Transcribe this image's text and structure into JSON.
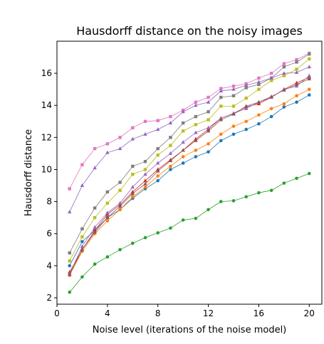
{
  "chart_data": {
    "type": "line",
    "title": "Hausdorff distance on the noisy images",
    "xlabel": "Noise level (iterations of the noise model)",
    "ylabel": "Hausdorff distance",
    "xlim": [
      0,
      21
    ],
    "ylim": [
      1.6,
      18.0
    ],
    "xticks": [
      0,
      4,
      8,
      12,
      16,
      20
    ],
    "yticks": [
      2,
      4,
      6,
      8,
      10,
      12,
      14,
      16
    ],
    "grid": false,
    "legend": "none",
    "x": [
      1,
      2,
      3,
      4,
      5,
      6,
      7,
      8,
      9,
      10,
      11,
      12,
      13,
      14,
      15,
      16,
      17,
      18,
      19,
      20
    ],
    "series": [
      {
        "color": "#1f77b4",
        "marker": "circle",
        "values": [
          4.0,
          5.5,
          6.2,
          7.0,
          7.5,
          8.2,
          8.8,
          9.3,
          10.0,
          10.4,
          10.8,
          11.1,
          11.8,
          12.2,
          12.5,
          12.85,
          13.3,
          13.9,
          14.2,
          14.65
        ]
      },
      {
        "color": "#ff7f0e",
        "marker": "circle",
        "values": [
          3.4,
          4.9,
          6.0,
          6.8,
          7.5,
          8.3,
          8.9,
          9.6,
          10.2,
          10.8,
          11.2,
          11.6,
          12.2,
          12.7,
          13.0,
          13.4,
          13.8,
          14.1,
          14.6,
          15.0
        ]
      },
      {
        "color": "#2ca02c",
        "marker": "circle",
        "values": [
          2.35,
          3.3,
          4.1,
          4.55,
          5.0,
          5.4,
          5.75,
          6.05,
          6.35,
          6.85,
          6.95,
          7.5,
          8.0,
          8.05,
          8.3,
          8.55,
          8.7,
          9.15,
          9.45,
          9.75
        ]
      },
      {
        "color": "#d62728",
        "marker": "triangle",
        "values": [
          3.6,
          5.0,
          6.2,
          7.2,
          7.8,
          8.6,
          9.3,
          10.0,
          10.6,
          11.2,
          11.9,
          12.5,
          13.2,
          13.5,
          13.9,
          14.1,
          14.5,
          15.0,
          15.4,
          15.75
        ]
      },
      {
        "color": "#9467bd",
        "marker": "triangle",
        "values": [
          3.5,
          5.2,
          6.4,
          7.3,
          7.9,
          8.9,
          9.7,
          10.4,
          11.0,
          11.7,
          12.3,
          12.6,
          13.2,
          13.5,
          13.8,
          14.2,
          14.5,
          15.0,
          15.2,
          15.85
        ]
      },
      {
        "color": "#8c564b",
        "marker": "triangle",
        "values": [
          3.45,
          5.0,
          6.1,
          7.0,
          7.7,
          8.5,
          9.1,
          9.9,
          10.55,
          11.2,
          11.8,
          12.4,
          13.1,
          13.45,
          13.95,
          14.2,
          14.55,
          14.95,
          15.3,
          15.65
        ]
      },
      {
        "color": "#e377c2",
        "marker": "square",
        "values": [
          8.8,
          10.3,
          11.3,
          11.6,
          12.0,
          12.6,
          13.0,
          13.05,
          13.3,
          13.7,
          14.2,
          14.5,
          15.05,
          15.2,
          15.35,
          15.7,
          16.0,
          16.6,
          16.85,
          17.25
        ]
      },
      {
        "color": "#7f7f7f",
        "marker": "square",
        "values": [
          4.8,
          6.3,
          7.6,
          8.6,
          9.2,
          10.2,
          10.5,
          11.3,
          12.0,
          12.9,
          13.3,
          13.6,
          14.5,
          14.6,
          15.1,
          15.3,
          15.7,
          16.4,
          16.7,
          17.2
        ]
      },
      {
        "color": "#bcbd22",
        "marker": "square",
        "values": [
          4.3,
          5.8,
          7.0,
          7.9,
          8.7,
          9.7,
          10.0,
          10.9,
          11.5,
          12.4,
          12.8,
          13.1,
          13.95,
          13.95,
          14.45,
          15.0,
          15.55,
          15.85,
          16.25,
          16.9
        ]
      },
      {
        "color": "#9467bd",
        "marker": "triangle",
        "values": [
          7.35,
          9.0,
          10.1,
          11.05,
          11.3,
          11.9,
          12.2,
          12.5,
          12.9,
          13.6,
          14.0,
          14.2,
          14.9,
          15.0,
          15.25,
          15.45,
          15.7,
          16.0,
          16.05,
          16.4
        ]
      }
    ]
  }
}
